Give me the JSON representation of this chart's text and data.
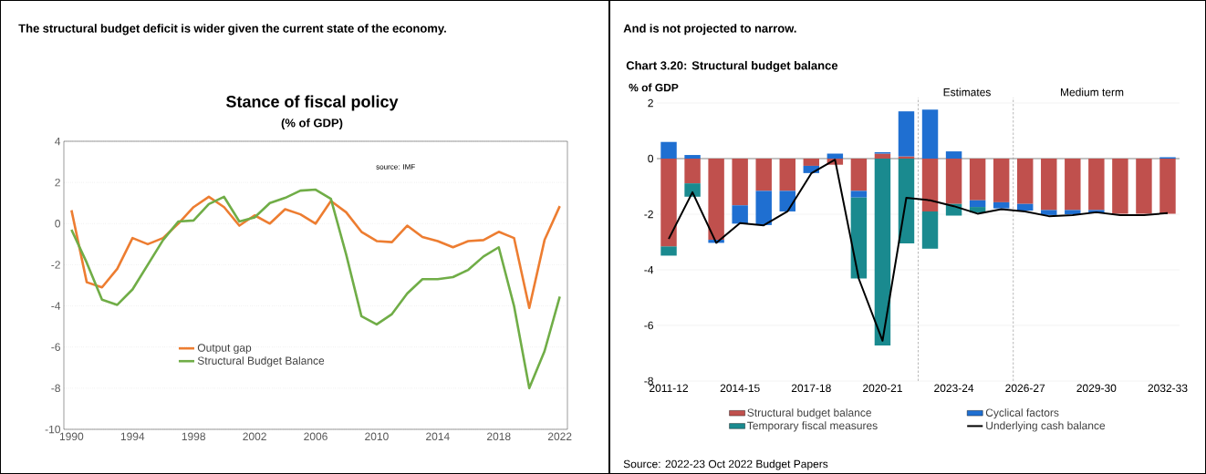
{
  "chart_data": [
    {
      "type": "line",
      "title": "The structural budget deficit is wider given the current state of the economy.",
      "subtitle": "Stance of fiscal policy",
      "annotations": [
        "(% of GDP)",
        "source:  IMF"
      ],
      "x": [
        1990,
        1991,
        1992,
        1993,
        1994,
        1995,
        1996,
        1997,
        1998,
        1999,
        2000,
        2001,
        2002,
        2003,
        2004,
        2005,
        2006,
        2007,
        2008,
        2009,
        2010,
        2011,
        2012,
        2013,
        2014,
        2015,
        2016,
        2017,
        2018,
        2019,
        2020,
        2021,
        2022
      ],
      "series": [
        {
          "name": "Output gap",
          "color": "#ed7d31",
          "values": [
            0.65,
            -2.85,
            -3.1,
            -2.2,
            -0.7,
            -1.0,
            -0.7,
            0.0,
            0.8,
            1.3,
            0.8,
            -0.1,
            0.4,
            0.0,
            0.7,
            0.45,
            0.0,
            1.1,
            0.55,
            -0.4,
            -0.85,
            -0.9,
            -0.1,
            -0.65,
            -0.85,
            -1.15,
            -0.85,
            -0.8,
            -0.4,
            -0.7,
            -4.1,
            -0.8,
            0.85
          ]
        },
        {
          "name": "Structural Budget Balance",
          "color": "#70ad47",
          "values": [
            -0.3,
            -1.9,
            -3.7,
            -3.95,
            -3.2,
            -2.0,
            -0.8,
            0.1,
            0.15,
            0.95,
            1.3,
            0.1,
            0.3,
            1.0,
            1.25,
            1.6,
            1.65,
            1.2,
            -1.5,
            -4.5,
            -4.9,
            -4.4,
            -3.4,
            -2.7,
            -2.7,
            -2.6,
            -2.25,
            -1.6,
            -1.15,
            -4.0,
            -8.0,
            -6.2,
            -3.55
          ]
        }
      ],
      "xlim": [
        1989.5,
        2022.5
      ],
      "ylim": [
        -10,
        4
      ],
      "xticks": [
        1990,
        1994,
        1998,
        2002,
        2006,
        2010,
        2014,
        2018,
        2022
      ],
      "yticks": [
        -10,
        -8,
        -6,
        -4,
        -2,
        0,
        2,
        4
      ],
      "grid": "y",
      "legend": "bottom left"
    },
    {
      "type": "bar",
      "stacked": true,
      "title": "And is not projected to narrow.",
      "subtitle": "Chart 3.20: Structural budget balance",
      "ylabel": "% of GDP",
      "annotations": [
        "Source:  2022-23 Oct 2022 Budget Papers",
        "Estimates",
        "Medium term"
      ],
      "categories": [
        "2011-12",
        null,
        null,
        "2014-15",
        null,
        null,
        "2017-18",
        null,
        null,
        "2020-21",
        null,
        null,
        "2023-24",
        null,
        null,
        "2026-27",
        null,
        null,
        "2029-30",
        null,
        null,
        "2032-33"
      ],
      "series": [
        {
          "name": "Structural budget balance",
          "color": "#c0504d",
          "values": [
            -3.16,
            -0.89,
            -2.92,
            -1.68,
            -1.16,
            -1.16,
            -0.26,
            -0.22,
            -1.16,
            0.18,
            0.08,
            -1.9,
            -1.63,
            -1.5,
            -1.57,
            -1.63,
            -1.85,
            -1.85,
            -1.85,
            -1.98,
            -1.98,
            -1.98
          ]
        },
        {
          "name": "Cyclical factors",
          "color": "#1f6fd1",
          "values": [
            0.6,
            0.13,
            -0.11,
            -0.66,
            -1.23,
            -0.74,
            -0.26,
            0.18,
            -0.24,
            0.05,
            1.62,
            1.76,
            0.26,
            -0.24,
            -0.22,
            -0.24,
            -0.18,
            -0.15,
            -0.09,
            null,
            null,
            0.05
          ]
        },
        {
          "name": "Temporary fiscal measures",
          "color": "#1a8a8f",
          "values": [
            -0.33,
            -0.48,
            null,
            null,
            null,
            null,
            null,
            null,
            -2.91,
            -6.72,
            -3.05,
            -1.34,
            -0.42,
            -0.2,
            null,
            null,
            null,
            null,
            null,
            null,
            null,
            null
          ]
        },
        {
          "name": "Underlying cash balance",
          "type": "line",
          "color": "#000000",
          "values": [
            -2.89,
            -1.21,
            -3.03,
            -2.32,
            -2.4,
            -1.9,
            -0.53,
            -0.04,
            -4.32,
            -6.55,
            -1.41,
            -1.5,
            -1.71,
            -1.98,
            -1.82,
            -1.9,
            -2.07,
            -2.03,
            -1.93,
            -2.03,
            -2.03,
            -1.96
          ]
        }
      ],
      "ylim": [
        -8,
        2
      ],
      "yticks": [
        -8,
        -6,
        -4,
        -2,
        0,
        2
      ],
      "grid": "y",
      "legend": "bottom"
    }
  ]
}
